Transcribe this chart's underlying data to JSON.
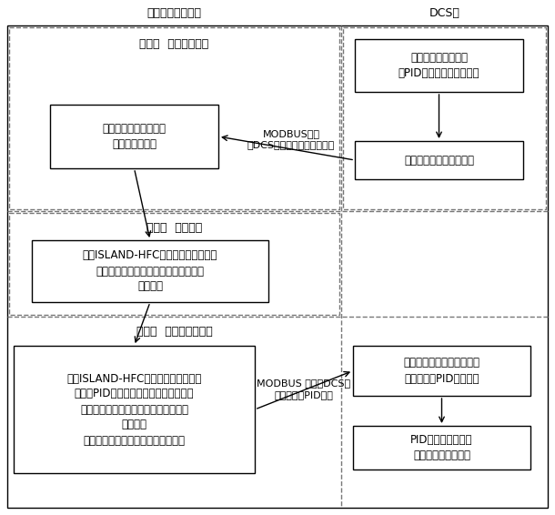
{
  "title_left": "工业控制计算机侧",
  "title_right": "DCS侧",
  "section1_title": "第一步  现场开环试验",
  "section2_title": "第二步  过程辨识",
  "section3_title": "第三步  控制器参数优化",
  "box1_text": "采集过程开环响应数据\n并存入数据文件",
  "box2_text": "被辨识环节置于开环\n即PID控制器处于手动状态",
  "box3_text": "手动施加阶跃、斜坡信号",
  "box4_text": "调用ISLAND-HFC混合模型遗传编程算\n法进行辨识最优个体传递函数作为过程\n数学模型",
  "box5_text": "调用ISLAND-HFC混合模型遗传编程算\n法进行PID参数优化，进化过程中使用过\n程辨识软件得出的过程传递函数进行软\n件仿真，\n最终得出最优比例、积分、微分参数",
  "box6_text": "优化得出的比例、积分、微\n分参数写入PID控制逻辑",
  "box7_text": "PID控制器自动运行\n被辨识换机恢复闭环",
  "arrow1_label_top": "MODBUS通信",
  "arrow1_label_bot": "自DCS读出过程开环响应数据",
  "arrow2_label_top": "MODBUS 通信向DCS写",
  "arrow2_label_bot": "入优化后的PID参数",
  "bg_color": "#ffffff",
  "text_color": "#000000"
}
